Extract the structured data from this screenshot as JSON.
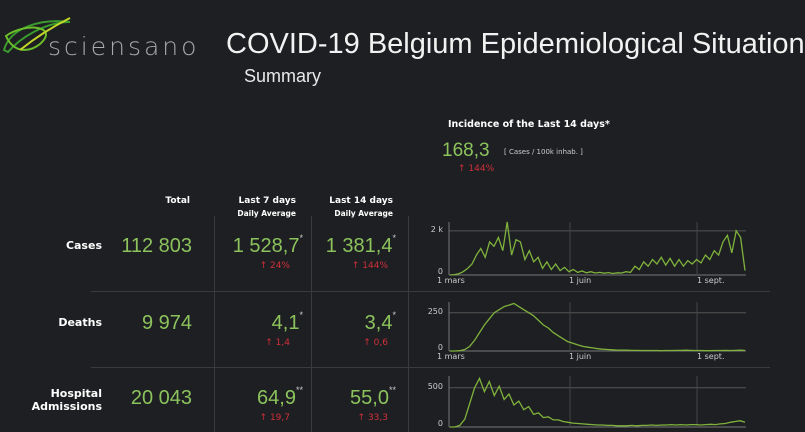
{
  "header": {
    "logo_text": "sciensano",
    "title": "COVID-19 Belgium Epidemiological Situation",
    "subtitle": "Summary"
  },
  "incidence": {
    "title": "Incidence of the Last 14 days*",
    "value": "168,3",
    "unit": "[ Cases / 100k inhab. ]",
    "change": "144%"
  },
  "columns": {
    "total": "Total",
    "last7": "Last 7 days",
    "last7_sub": "Daily Average",
    "last14": "Last 14 days",
    "last14_sub": "Daily Average"
  },
  "rows": [
    {
      "label": "Cases",
      "total": "112 803",
      "avg7": "1 528,7",
      "avg7_mark": "*",
      "chg7": "24%",
      "avg14": "1 381,4",
      "avg14_mark": "*",
      "chg14": "144%"
    },
    {
      "label": "Deaths",
      "total": "9 974",
      "avg7": "4,1",
      "avg7_mark": "*",
      "chg7": "1,4",
      "avg14": "3,4",
      "avg14_mark": "*",
      "chg14": "0,6"
    },
    {
      "label": "Hospital Admissions",
      "total": "20 043",
      "avg7": "64,9",
      "avg7_mark": "**",
      "chg7": "19,7",
      "avg14": "55,0",
      "avg14_mark": "**",
      "chg14": "33,3"
    }
  ],
  "charts": [
    {
      "y_ticks": [
        "2 k",
        "0"
      ],
      "x_ticks": [
        "1 mars",
        "1 juin",
        "1 sept."
      ],
      "ymax": 2400,
      "values": [
        0,
        20,
        60,
        150,
        300,
        500,
        900,
        1200,
        800,
        1500,
        1300,
        1700,
        1100,
        2400,
        900,
        1600,
        1500,
        700,
        1100,
        600,
        800,
        300,
        600,
        250,
        500,
        200,
        350,
        150,
        250,
        120,
        180,
        100,
        150,
        90,
        120,
        80,
        110,
        70,
        100,
        90,
        150,
        120,
        400,
        250,
        600,
        400,
        700,
        500,
        800,
        450,
        750,
        400,
        700,
        400,
        650,
        500,
        700,
        550,
        900,
        700,
        1100,
        900,
        1500,
        1800,
        1000,
        2000,
        1700,
        200
      ],
      "y_ref": 2000
    },
    {
      "y_ticks": [
        "250",
        "0"
      ],
      "x_ticks": [
        "1 mars",
        "1 juin",
        "1 sept."
      ],
      "ymax": 320,
      "values": [
        0,
        0,
        2,
        10,
        30,
        70,
        120,
        170,
        210,
        250,
        270,
        290,
        300,
        310,
        290,
        270,
        250,
        230,
        200,
        170,
        150,
        120,
        100,
        80,
        60,
        50,
        40,
        30,
        25,
        20,
        15,
        12,
        10,
        8,
        6,
        5,
        5,
        4,
        4,
        3,
        3,
        3,
        3,
        2,
        3,
        3,
        4,
        4,
        5,
        4,
        3,
        3,
        2,
        2,
        3,
        3,
        4,
        3,
        4,
        5,
        4
      ],
      "y_ref": 250
    },
    {
      "y_ticks": [
        "500",
        "0"
      ],
      "x_ticks": [],
      "ymax": 650,
      "values": [
        0,
        0,
        20,
        100,
        300,
        500,
        620,
        450,
        580,
        400,
        520,
        350,
        420,
        280,
        330,
        220,
        260,
        160,
        180,
        120,
        130,
        90,
        90,
        70,
        60,
        50,
        45,
        40,
        35,
        30,
        25,
        25,
        20,
        20,
        15,
        15,
        15,
        20,
        15,
        20,
        20,
        25,
        20,
        25,
        25,
        30,
        25,
        30,
        25,
        30,
        30,
        25,
        30,
        35,
        30,
        40,
        45,
        60,
        70,
        80,
        60
      ],
      "y_ref": 500
    }
  ],
  "colors": {
    "value": "#8cc35c",
    "line": "#7fb23c",
    "change": "#d0303a"
  }
}
